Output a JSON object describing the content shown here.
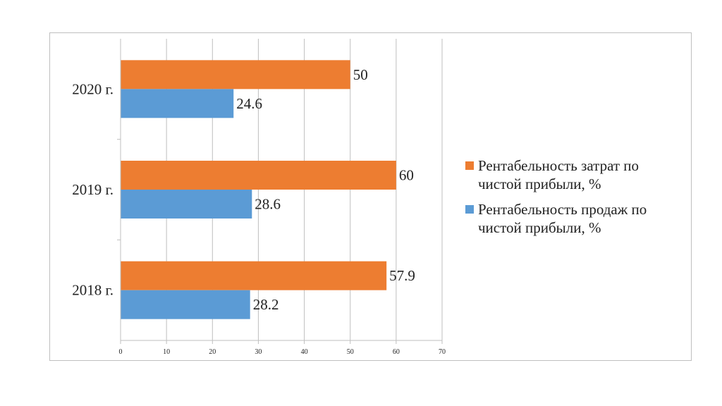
{
  "chart_data": {
    "type": "bar",
    "orientation": "horizontal",
    "categories": [
      "2020 г.",
      "2019 г.",
      "2018 г."
    ],
    "series": [
      {
        "name": "Рентабельность затрат по чистой прибыли, %",
        "color": "#ed7d31",
        "values": [
          50,
          60,
          57.9
        ],
        "labels": [
          "50",
          "60",
          "57.9"
        ]
      },
      {
        "name": "Рентабельность продаж по чистой прибыли, %",
        "color": "#5b9bd5",
        "values": [
          24.6,
          28.6,
          28.2
        ],
        "labels": [
          "24.6",
          "28.6",
          "28.2"
        ]
      }
    ],
    "xlim": [
      0,
      70
    ],
    "xticks": [
      0,
      10,
      20,
      30,
      40,
      50,
      60,
      70
    ],
    "grid": true,
    "legend_position": "right"
  }
}
